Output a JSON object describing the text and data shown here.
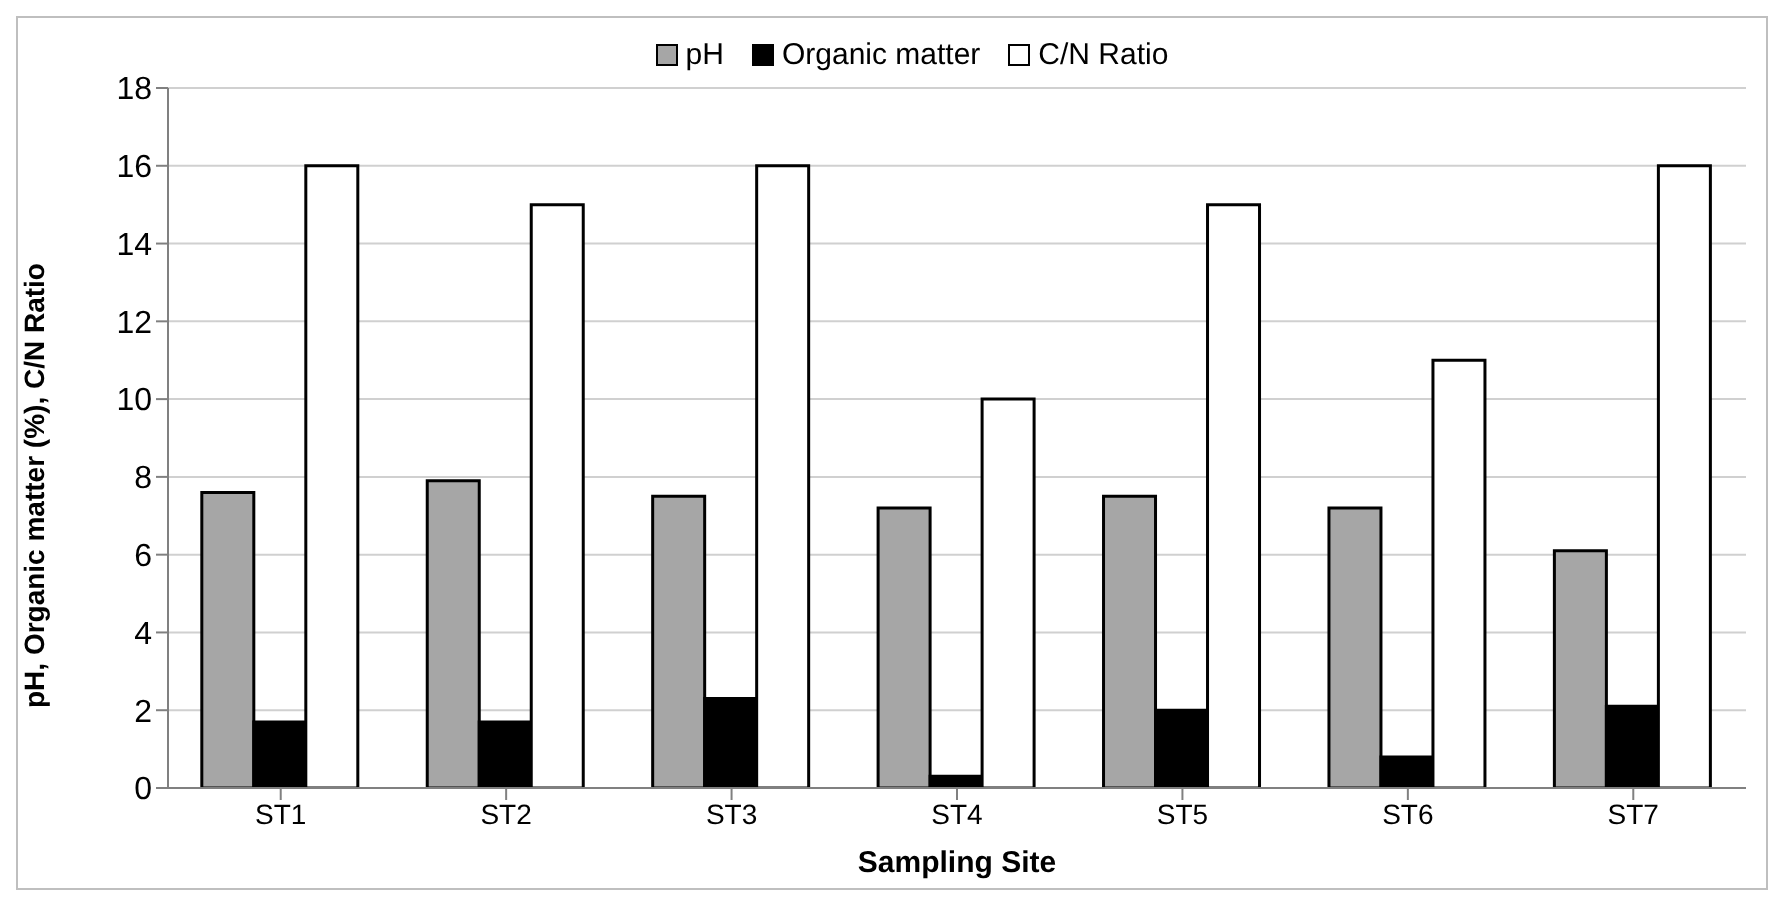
{
  "chart_data": {
    "type": "bar",
    "xlabel": "Sampling Site",
    "ylabel": "pH, Organic matter (%), C/N Ratio",
    "categories": [
      "ST1",
      "ST2",
      "ST3",
      "ST4",
      "ST5",
      "ST6",
      "ST7"
    ],
    "series": [
      {
        "name": "pH",
        "color": "#a6a6a6",
        "values": [
          7.6,
          7.9,
          7.5,
          7.2,
          7.5,
          7.2,
          6.1
        ]
      },
      {
        "name": "Organic matter",
        "color": "#000000",
        "values": [
          1.7,
          1.7,
          2.3,
          0.3,
          2.0,
          0.8,
          2.1
        ]
      },
      {
        "name": "C/N Ratio",
        "color": "#ffffff",
        "values": [
          16,
          15,
          16,
          10,
          15,
          11,
          16
        ]
      }
    ],
    "ylim": [
      0,
      18
    ],
    "yticks": [
      0,
      2,
      4,
      6,
      8,
      10,
      12,
      14,
      16,
      18
    ],
    "grid": "y",
    "legend": "top"
  }
}
